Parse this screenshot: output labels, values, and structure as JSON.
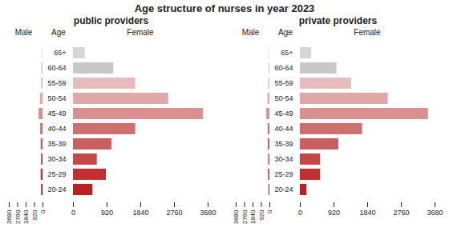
{
  "chart_data": [
    {
      "type": "bar",
      "orientation": "horizontal",
      "title": "Age structure of nurses in year 2023",
      "subtitle": "public providers",
      "ylabel": "Age",
      "categories": [
        "65+",
        "60-64",
        "55-59",
        "50-54",
        "45-49",
        "40-44",
        "35-39",
        "30-34",
        "25-29",
        "20-24"
      ],
      "series": [
        {
          "name": "Male",
          "values": [
            60,
            130,
            160,
            280,
            430,
            250,
            200,
            170,
            200,
            160
          ]
        },
        {
          "name": "Female",
          "values": [
            320,
            1100,
            1700,
            2600,
            3550,
            1700,
            1050,
            650,
            900,
            530
          ]
        }
      ],
      "colors": [
        "#d5d5d5",
        "#c8c8c8",
        "#e8bcbc",
        "#e0a8a8",
        "#d89090",
        "#cc7070",
        "#c86060",
        "#c44848",
        "#c03030",
        "#bb2020"
      ],
      "xlim": [
        0,
        3680
      ],
      "xticks": [
        0,
        920,
        1840,
        2760,
        3680
      ]
    },
    {
      "type": "bar",
      "orientation": "horizontal",
      "subtitle": "private providers",
      "ylabel": "Age",
      "categories": [
        "65+",
        "60-64",
        "55-59",
        "50-54",
        "45-49",
        "40-44",
        "35-39",
        "30-34",
        "25-29",
        "20-24"
      ],
      "series": [
        {
          "name": "Male",
          "values": [
            50,
            100,
            130,
            200,
            340,
            190,
            180,
            130,
            140,
            100
          ]
        },
        {
          "name": "Female",
          "values": [
            310,
            1000,
            1400,
            2400,
            3500,
            1700,
            1050,
            550,
            550,
            180
          ]
        }
      ],
      "colors": [
        "#d5d5d5",
        "#c8c8c8",
        "#e8bcbc",
        "#e0a8a8",
        "#d89090",
        "#cc7070",
        "#c86060",
        "#c44848",
        "#c03030",
        "#bb2020"
      ],
      "xlim": [
        0,
        3680
      ],
      "xticks": [
        0,
        920,
        1840,
        2760,
        3680
      ]
    }
  ]
}
